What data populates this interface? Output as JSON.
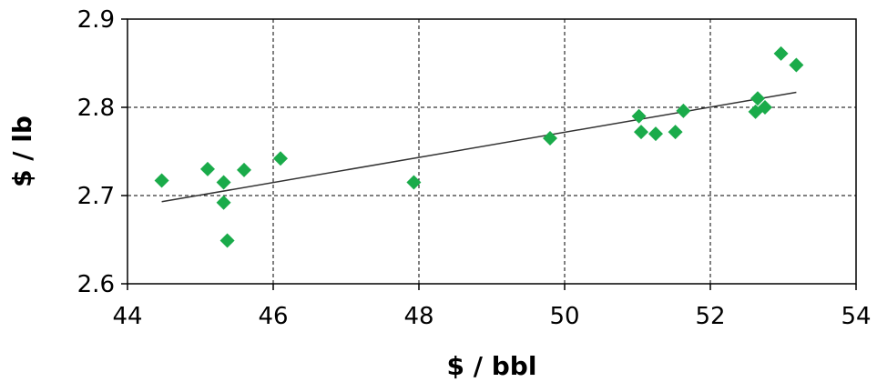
{
  "chart_data": {
    "type": "scatter",
    "xlabel": "$ / bbl",
    "ylabel": "$ / lb",
    "xlim": [
      44,
      54
    ],
    "ylim": [
      2.6,
      2.9
    ],
    "x_ticks": [
      44,
      46,
      48,
      50,
      52,
      54
    ],
    "x_tick_labels": [
      "44",
      "46",
      "48",
      "50",
      "52",
      "54"
    ],
    "y_ticks": [
      2.6,
      2.7,
      2.8,
      2.9
    ],
    "y_tick_labels": [
      "2.6",
      "2.7",
      "2.8",
      "2.9"
    ],
    "grid": true,
    "marker": "diamond",
    "colors": {
      "points": "#1aab4a",
      "trendline": "#333333",
      "grid": "#000000"
    },
    "points": [
      {
        "x": 44.47,
        "y": 2.717
      },
      {
        "x": 45.1,
        "y": 2.73
      },
      {
        "x": 45.32,
        "y": 2.715
      },
      {
        "x": 45.32,
        "y": 2.692
      },
      {
        "x": 45.37,
        "y": 2.649
      },
      {
        "x": 45.6,
        "y": 2.729
      },
      {
        "x": 46.1,
        "y": 2.742
      },
      {
        "x": 47.93,
        "y": 2.715
      },
      {
        "x": 49.8,
        "y": 2.765
      },
      {
        "x": 51.02,
        "y": 2.79
      },
      {
        "x": 51.05,
        "y": 2.772
      },
      {
        "x": 51.25,
        "y": 2.77
      },
      {
        "x": 51.52,
        "y": 2.772
      },
      {
        "x": 51.63,
        "y": 2.796
      },
      {
        "x": 52.62,
        "y": 2.795
      },
      {
        "x": 52.65,
        "y": 2.81
      },
      {
        "x": 52.75,
        "y": 2.8
      },
      {
        "x": 52.97,
        "y": 2.861
      },
      {
        "x": 53.18,
        "y": 2.848
      }
    ],
    "trendline": {
      "x": [
        44.47,
        53.18
      ],
      "y": [
        2.693,
        2.817
      ]
    }
  }
}
